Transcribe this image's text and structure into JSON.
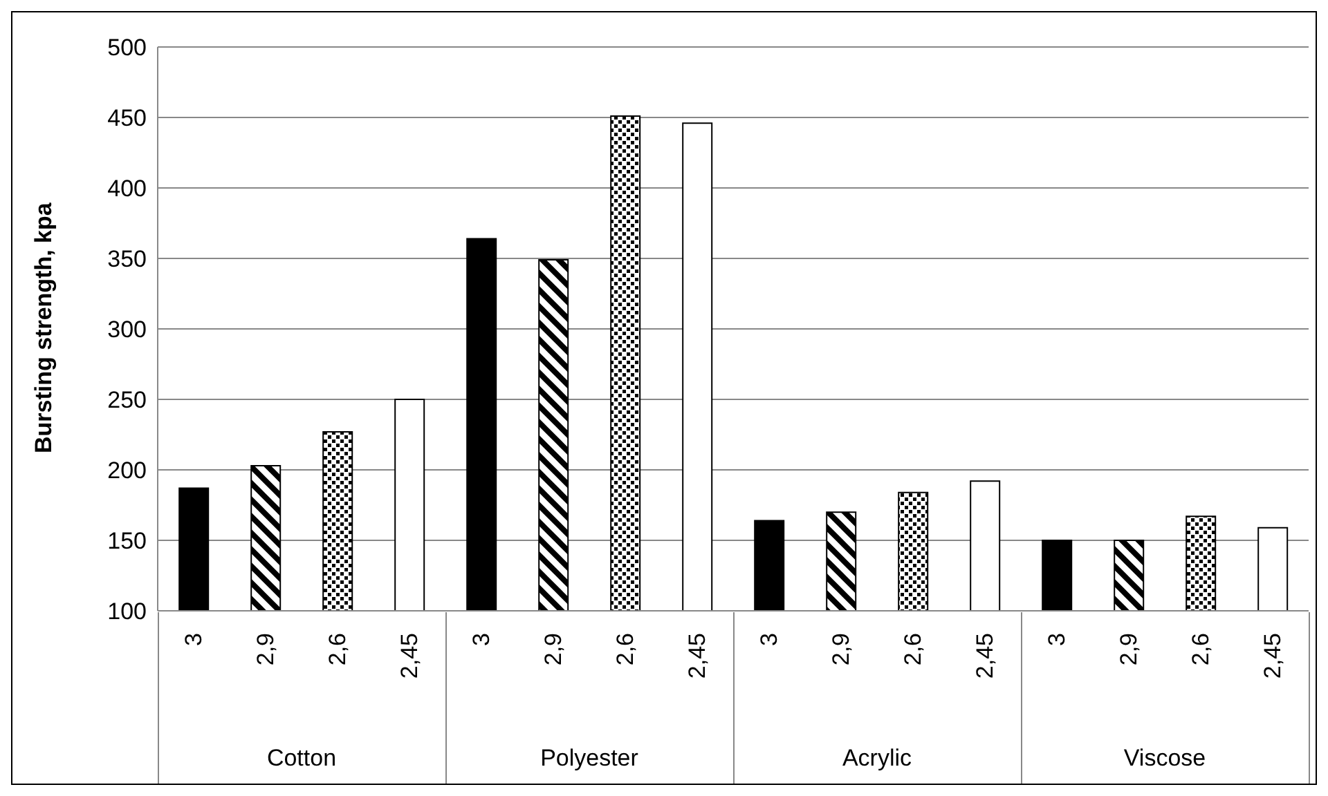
{
  "chart_data": {
    "type": "bar",
    "ylabel": "Bursting strength, kpa",
    "categories": [
      "3",
      "2,9",
      "2,6",
      "2,45",
      "3",
      "2,9",
      "2,6",
      "2,45",
      "3",
      "2,9",
      "2,6",
      "2,45",
      "3",
      "2,9",
      "2,6",
      "2,45"
    ],
    "values": [
      187,
      203,
      227,
      250,
      364,
      349,
      451,
      446,
      164,
      170,
      184,
      192,
      150,
      150,
      167,
      159
    ],
    "colors": [
      "#000000",
      "#000000",
      "#000000",
      "#ffffff",
      "#000000",
      "#000000",
      "#000000",
      "#ffffff",
      "#000000",
      "#000000",
      "#000000",
      "#ffffff",
      "#000000",
      "#000000",
      "#000000",
      "#ffffff"
    ],
    "annotations": [
      "Cotton",
      "Polyester",
      "Acrylic",
      "Viscose"
    ],
    "ylim": [
      100,
      500
    ],
    "yticks": [
      100,
      150,
      200,
      250,
      300,
      350,
      400,
      450,
      500
    ],
    "grid": "y",
    "legend": false
  }
}
